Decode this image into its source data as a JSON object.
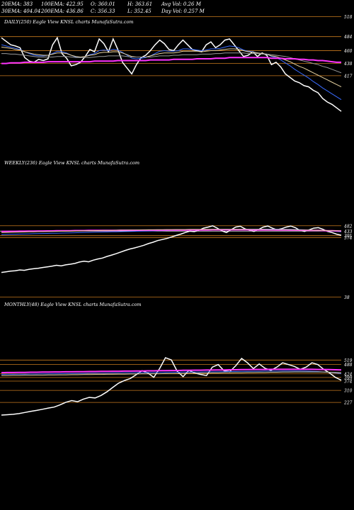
{
  "header": {
    "row1": [
      {
        "id": "ema20",
        "text": "20EMA: 383"
      },
      {
        "id": "ema100",
        "text": "100EMA: 422.95"
      },
      {
        "id": "open",
        "text": "O: 360.01"
      },
      {
        "id": "high",
        "text": "H: 363.61"
      },
      {
        "id": "avgvol",
        "text": "Avg Vol: 0.26  M"
      }
    ],
    "row2": [
      {
        "id": "ema30",
        "text": "30EMA: 404.04"
      },
      {
        "id": "ema200",
        "text": "200EMA: 436.86"
      },
      {
        "id": "close",
        "text": "C: 356.33"
      },
      {
        "id": "low",
        "text": "L: 352.45"
      },
      {
        "id": "dayvol",
        "text": "Day Vol: 0.257  M"
      }
    ]
  },
  "chart_data": [
    {
      "type": "line",
      "title": "DAILY(250) Eagle  View KNSL charts MunafaSutra.com",
      "price_levels": [
        518,
        484,
        460,
        438,
        417,
        38
      ],
      "level_colors": {
        "518": "#c87a1e",
        "484": "#c87a1e",
        "460": "#c87a1e",
        "438": "#c87a1e",
        "417": "#c87a1e",
        "38": "#c87a1e"
      },
      "ylim": [
        355,
        520
      ],
      "series": [
        {
          "color": "#ffffff",
          "values": [
            482,
            476,
            470,
            468,
            465,
            448,
            442,
            440,
            445,
            443,
            446,
            470,
            482,
            455,
            447,
            434,
            436,
            440,
            450,
            462,
            458,
            480,
            472,
            458,
            480,
            462,
            440,
            430,
            420,
            436,
            448,
            452,
            460,
            470,
            478,
            472,
            462,
            460,
            470,
            478,
            470,
            462,
            460,
            458,
            470,
            475,
            465,
            470,
            478,
            480,
            470,
            460,
            450,
            452,
            458,
            450,
            456,
            452,
            436,
            440,
            432,
            420,
            414,
            408,
            405,
            400,
            398,
            392,
            388,
            378,
            372,
            368,
            362,
            356
          ]
        },
        {
          "color": "#3a6cff",
          "values": [
            470,
            468,
            466,
            464,
            462,
            458,
            455,
            452,
            451,
            451,
            452,
            455,
            459,
            458,
            456,
            452,
            449,
            448,
            450,
            453,
            455,
            460,
            461,
            460,
            462,
            461,
            457,
            452,
            447,
            446,
            447,
            448,
            451,
            455,
            459,
            460,
            459,
            459,
            460,
            463,
            463,
            462,
            461,
            460,
            461,
            463,
            463,
            464,
            466,
            468,
            467,
            465,
            461,
            459,
            458,
            456,
            455,
            454,
            450,
            448,
            444,
            439,
            434,
            428,
            423,
            418,
            413,
            407,
            402,
            396,
            391,
            386,
            381,
            376
          ]
        },
        {
          "color": "#e6d2a0",
          "values": [
            466,
            465,
            464,
            462,
            461,
            458,
            456,
            454,
            453,
            452,
            452,
            454,
            456,
            456,
            455,
            452,
            450,
            449,
            450,
            452,
            453,
            456,
            457,
            457,
            458,
            458,
            456,
            453,
            450,
            449,
            449,
            449,
            451,
            453,
            455,
            456,
            456,
            456,
            457,
            459,
            459,
            459,
            459,
            458,
            459,
            460,
            460,
            461,
            462,
            463,
            463,
            462,
            460,
            458,
            457,
            456,
            455,
            454,
            451,
            450,
            447,
            444,
            441,
            437,
            433,
            430,
            426,
            422,
            418,
            414,
            410,
            406,
            402,
            398
          ]
        },
        {
          "color": "#9a9a9a",
          "values": [
            455,
            455,
            454,
            454,
            453,
            452,
            451,
            450,
            449,
            449,
            449,
            449,
            450,
            450,
            450,
            449,
            448,
            448,
            448,
            448,
            449,
            450,
            450,
            451,
            451,
            451,
            451,
            450,
            449,
            449,
            449,
            449,
            449,
            450,
            451,
            451,
            451,
            452,
            452,
            453,
            453,
            453,
            453,
            454,
            454,
            454,
            455,
            455,
            456,
            456,
            456,
            456,
            456,
            455,
            455,
            455,
            454,
            454,
            453,
            452,
            451,
            450,
            448,
            446,
            444,
            442,
            440,
            438,
            436,
            433,
            431,
            428,
            425,
            422
          ]
        },
        {
          "color": "#ff33ff",
          "values": [
            438,
            438,
            439,
            439,
            439,
            440,
            440,
            440,
            440,
            440,
            441,
            441,
            441,
            441,
            441,
            441,
            441,
            441,
            441,
            441,
            442,
            442,
            442,
            442,
            442,
            443,
            443,
            443,
            443,
            443,
            443,
            443,
            444,
            444,
            444,
            444,
            444,
            445,
            445,
            445,
            445,
            445,
            446,
            446,
            446,
            446,
            447,
            447,
            447,
            448,
            448,
            448,
            448,
            448,
            448,
            448,
            448,
            448,
            447,
            447,
            447,
            446,
            446,
            446,
            445,
            445,
            444,
            444,
            443,
            443,
            442,
            441,
            440,
            440
          ]
        }
      ]
    },
    {
      "type": "line",
      "title": "WEEKLY(236) Eagle  View KNSL charts MunafaSutra.com",
      "price_levels": [
        482,
        433,
        391,
        374
      ],
      "level_colors": {
        "482": "#c87a1e",
        "433": "#ffffff",
        "391": "#c87a1e",
        "374": "#c87a1e"
      },
      "ylim": [
        30,
        500
      ],
      "series": [
        {
          "color": "#ffffff",
          "values": [
            52,
            58,
            64,
            68,
            75,
            72,
            80,
            86,
            90,
            98,
            104,
            110,
            118,
            112,
            122,
            128,
            135,
            148,
            156,
            150,
            165,
            176,
            185,
            200,
            212,
            225,
            240,
            255,
            268,
            278,
            290,
            302,
            318,
            330,
            345,
            355,
            365,
            378,
            392,
            405,
            420,
            432,
            428,
            440,
            460,
            470,
            482,
            460,
            435,
            420,
            445,
            470,
            478,
            455,
            440,
            430,
            448,
            470,
            480,
            460,
            445,
            455,
            470,
            480,
            465,
            440,
            430,
            445,
            460,
            465,
            450,
            430,
            420,
            405,
            395
          ]
        },
        {
          "color": "#3a6cff",
          "values": [
            400,
            402,
            404,
            405,
            406,
            407,
            408,
            409,
            410,
            411,
            412,
            413,
            414,
            415,
            416,
            417,
            418,
            419,
            420,
            421,
            422,
            423,
            424,
            425,
            426,
            427,
            428,
            429,
            430,
            431,
            432,
            433,
            434,
            435,
            436,
            437,
            438,
            439,
            440,
            441,
            442,
            443,
            444,
            445,
            446,
            447,
            448,
            449,
            450,
            450,
            449,
            449,
            450,
            451,
            451,
            451,
            451,
            451,
            451,
            451,
            451,
            450,
            450,
            449,
            448,
            447,
            445,
            443,
            441,
            439,
            437,
            435,
            433,
            430,
            427
          ]
        },
        {
          "color": "#ff33ff",
          "values": [
            430,
            430,
            431,
            431,
            432,
            432,
            433,
            433,
            434,
            434,
            435,
            435,
            436,
            436,
            437,
            437,
            438,
            438,
            438,
            439,
            439,
            439,
            440,
            440,
            440,
            440,
            441,
            441,
            441,
            441,
            441,
            442,
            442,
            442,
            442,
            442,
            443,
            443,
            443,
            443,
            443,
            444,
            444,
            444,
            444,
            444,
            445,
            445,
            445,
            445,
            445,
            445,
            445,
            445,
            445,
            444,
            444,
            444,
            444,
            444,
            443,
            443,
            443,
            442,
            442,
            441,
            441,
            440,
            440,
            439,
            438,
            437,
            436,
            435,
            434
          ]
        },
        {
          "color": "#e6d2a0",
          "values": [
            420,
            421,
            422,
            423,
            424,
            425,
            426,
            427,
            428,
            428,
            429,
            430,
            431,
            432,
            432,
            433,
            434,
            435,
            436,
            436,
            437,
            438,
            439,
            440,
            440,
            441,
            442,
            442,
            443,
            443,
            444,
            444,
            445,
            445,
            446,
            446,
            447,
            447,
            448,
            448,
            448,
            449,
            449,
            449,
            450,
            450,
            450,
            450,
            450,
            449,
            449,
            449,
            449,
            449,
            449,
            449,
            449,
            449,
            448,
            448,
            448,
            447,
            447,
            446,
            445,
            444,
            443,
            442,
            441,
            440,
            439,
            438,
            437,
            436,
            434
          ]
        }
      ]
    },
    {
      "type": "line",
      "title": "MONTHLY(48) Eagle  View KNSL charts MunafaSutra.com",
      "price_levels": [
        519,
        488,
        424,
        399,
        374,
        310,
        227
      ],
      "level_colors": {
        "519": "#c87a1e",
        "488": "#c87a1e",
        "424": "#c87a1e",
        "399": "#c87a1e",
        "374": "#c87a1e",
        "310": "#c87a1e",
        "227": "#c87a1e"
      },
      "ylim": [
        130,
        540
      ],
      "series": [
        {
          "color": "#ffffff",
          "values": [
            140,
            142,
            145,
            150,
            158,
            165,
            172,
            180,
            188,
            195,
            210,
            228,
            240,
            232,
            250,
            262,
            258,
            275,
            300,
            330,
            360,
            378,
            392,
            418,
            446,
            430,
            400,
            460,
            535,
            520,
            442,
            405,
            448,
            430,
            420,
            412,
            470,
            488,
            445,
            440,
            480,
            530,
            500,
            460,
            492,
            462,
            448,
            470,
            500,
            488,
            475,
            455,
            470,
            500,
            488,
            455,
            430,
            400,
            380
          ]
        },
        {
          "color": "#3a6cff",
          "values": [
            420,
            421,
            421,
            422,
            422,
            423,
            423,
            424,
            424,
            425,
            425,
            426,
            426,
            427,
            427,
            428,
            428,
            429,
            429,
            430,
            430,
            431,
            431,
            432,
            432,
            433,
            433,
            434,
            434,
            435,
            435,
            436,
            436,
            437,
            437,
            438,
            438,
            439,
            439,
            440,
            440,
            441,
            441,
            442,
            442,
            443,
            443,
            443,
            444,
            444,
            444,
            444,
            443,
            442,
            440,
            437,
            434,
            430,
            426
          ]
        },
        {
          "color": "#ff33ff",
          "values": [
            432,
            433,
            433,
            434,
            434,
            435,
            435,
            436,
            436,
            437,
            437,
            438,
            438,
            439,
            439,
            440,
            440,
            441,
            441,
            442,
            442,
            443,
            443,
            444,
            444,
            445,
            445,
            446,
            446,
            447,
            447,
            448,
            448,
            449,
            449,
            450,
            450,
            451,
            451,
            452,
            452,
            453,
            453,
            454,
            454,
            454,
            455,
            455,
            455,
            455,
            455,
            455,
            455,
            455,
            454,
            454,
            453,
            452,
            451
          ]
        },
        {
          "color": "#e6d2a0",
          "values": [
            412,
            412,
            413,
            413,
            414,
            414,
            415,
            415,
            416,
            416,
            417,
            417,
            418,
            418,
            419,
            419,
            420,
            420,
            421,
            421,
            422,
            422,
            423,
            423,
            424,
            424,
            425,
            425,
            426,
            426,
            427,
            427,
            428,
            428,
            429,
            429,
            430,
            430,
            431,
            431,
            432,
            432,
            433,
            433,
            434,
            434,
            435,
            435,
            436,
            436,
            437,
            437,
            437,
            437,
            437,
            436,
            435,
            434,
            432
          ]
        }
      ]
    }
  ]
}
